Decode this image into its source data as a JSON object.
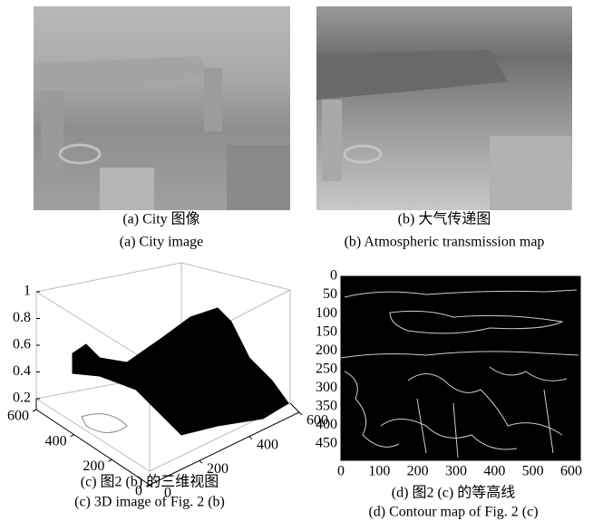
{
  "panels": [
    {
      "caption_cn": "(a) City 图像",
      "caption_en": "(a) City image"
    },
    {
      "caption_cn": "(b) 大气传递图",
      "caption_en": "(b) Atmospheric transmission map"
    },
    {
      "caption_cn": "(c) 图2 (b) 的三维视图",
      "caption_en": "(c) 3D image of Fig. 2 (b)",
      "zticks": [
        0.2,
        0.4,
        0.6,
        0.8,
        1
      ],
      "yticks": [
        0,
        200,
        400,
        600
      ],
      "xticks": [
        0,
        200,
        400,
        600
      ]
    },
    {
      "caption_cn": "(d) 图2 (c) 的等高线",
      "caption_en": "(d) Contour map of Fig. 2 (c)",
      "yticks": [
        0,
        50,
        100,
        150,
        200,
        250,
        300,
        350,
        400,
        450
      ],
      "xticks": [
        0,
        100,
        200,
        300,
        400,
        500,
        600
      ]
    }
  ]
}
